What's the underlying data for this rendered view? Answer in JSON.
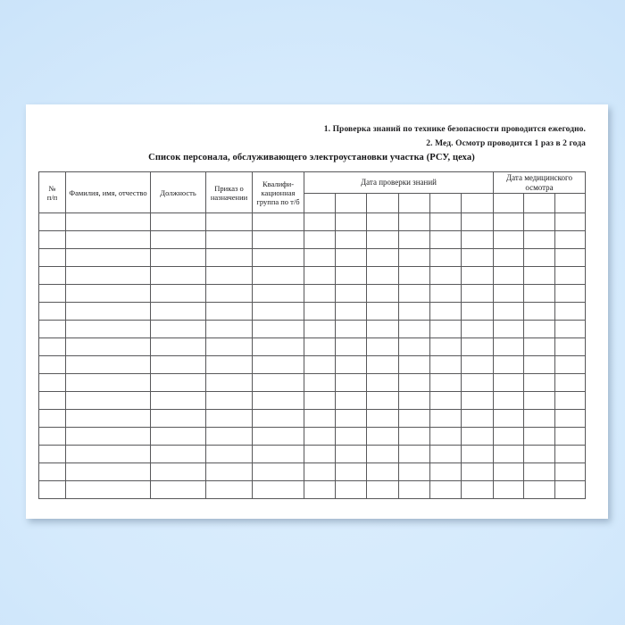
{
  "page": {
    "background_color_edge": "#c9e2f8",
    "background_color_center": "#ddeefd",
    "paper_color": "#ffffff",
    "table_line_color": "#58585a",
    "text_color": "#1b1b1d"
  },
  "document": {
    "notes": [
      "1. Проверка знаний по технике безопасности проводится ежегодно.",
      "2. Мед. Осмотр проводится 1 раз в 2 года"
    ],
    "title": "Список персонала, обслуживающего электроустановки участка (РСУ, цеха)",
    "table": {
      "header": {
        "col_npp": [
          "№",
          "п/п"
        ],
        "col_fio": [
          "Фамилия, имя, отчество"
        ],
        "col_dolzhnost": [
          "Должность"
        ],
        "col_prikaz": [
          "Приказ о",
          "назначении"
        ],
        "col_kvalif": [
          "Квалифи-",
          "кационная",
          "группа по т/б"
        ],
        "group_proverka": [
          "Дата проверки знаний"
        ],
        "group_med": [
          "Дата медицинского",
          "осмотра"
        ]
      },
      "sub_columns_proverka": 6,
      "sub_columns_med": 3,
      "fixed_columns": 5,
      "body_row_count": 16,
      "body_cells_value": ""
    }
  }
}
